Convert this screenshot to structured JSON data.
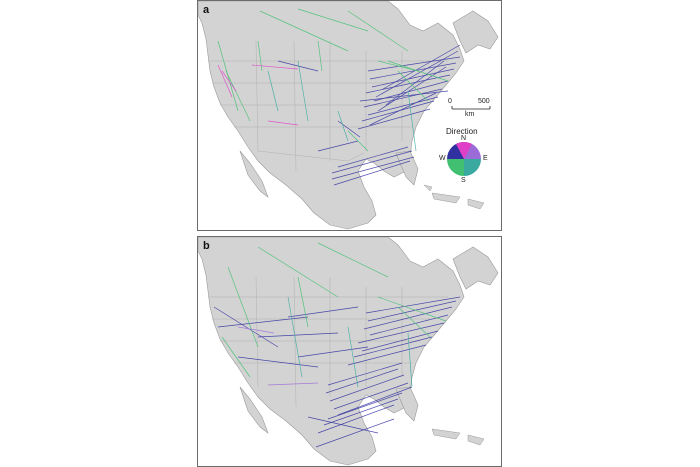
{
  "panels": [
    {
      "label": "a"
    },
    {
      "label": "b"
    }
  ],
  "scale_bar": {
    "zero": "0",
    "max": "500",
    "unit": "km"
  },
  "legend": {
    "title": "Direction",
    "n": "N",
    "e": "E",
    "s": "S",
    "w": "W",
    "colors": {
      "N": "#e040c8",
      "E": "#3aa9a0",
      "S": "#40c070",
      "W": "#3030a0"
    }
  },
  "map_colors": {
    "land": "#d3d3d3",
    "ocean": "#ffffff",
    "border": "#9a9a9a"
  }
}
